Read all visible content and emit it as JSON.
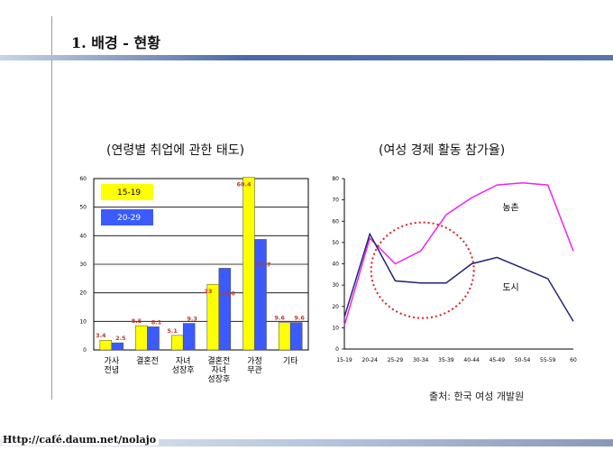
{
  "slide": {
    "title": "1. 배경 - 현황",
    "source": "출처: 한국 여성 개발원",
    "url": "Http://café.daum.net/nolajo"
  },
  "colors": {
    "yellow": "#ffff00",
    "blue": "#3b5bff",
    "label": "#c0392b",
    "rural": "#ee22ee",
    "urban": "#222277",
    "circle": "#dd2222"
  },
  "chart_data": [
    {
      "type": "bar",
      "title": "(연령별 취업에 관한 태도)",
      "categories": [
        [
          "가사",
          "전념"
        ],
        [
          "결혼전"
        ],
        [
          "자녀",
          "성장후"
        ],
        [
          "결혼전",
          "자녀",
          "성장후"
        ],
        [
          "가정",
          "무관"
        ],
        [
          "기타"
        ]
      ],
      "ylim": [
        0,
        60
      ],
      "yticks": [
        0,
        10,
        20,
        30,
        40,
        50,
        60
      ],
      "series": [
        {
          "name": "15-19",
          "values": [
            3.4,
            8.5,
            5.1,
            23,
            60.4,
            9.6
          ],
          "labels": [
            "3.4",
            "8.5",
            "5.1",
            "23",
            "60.4",
            "9.6"
          ]
        },
        {
          "name": "20-29",
          "values": [
            2.5,
            8.1,
            9.3,
            28.6,
            38.7,
            9.6
          ],
          "labels": [
            "2.5",
            "8.1",
            "9.3",
            "28.6",
            "38.7",
            "9.6"
          ]
        }
      ]
    },
    {
      "type": "line",
      "title": "(여성 경제 활동 참가율)",
      "x": [
        "15-19",
        "20-24",
        "25-29",
        "30-34",
        "35-39",
        "40-44",
        "45-49",
        "50-54",
        "55-59",
        "60"
      ],
      "ylim": [
        0,
        80
      ],
      "yticks": [
        0,
        10,
        20,
        30,
        40,
        50,
        60,
        70,
        80
      ],
      "series": [
        {
          "name": "농촌",
          "values": [
            11,
            52,
            40,
            46,
            63,
            71,
            77,
            78,
            77,
            46
          ]
        },
        {
          "name": "도시",
          "values": [
            15,
            54,
            32,
            31,
            31,
            40,
            43,
            38,
            33,
            13
          ]
        }
      ]
    }
  ]
}
